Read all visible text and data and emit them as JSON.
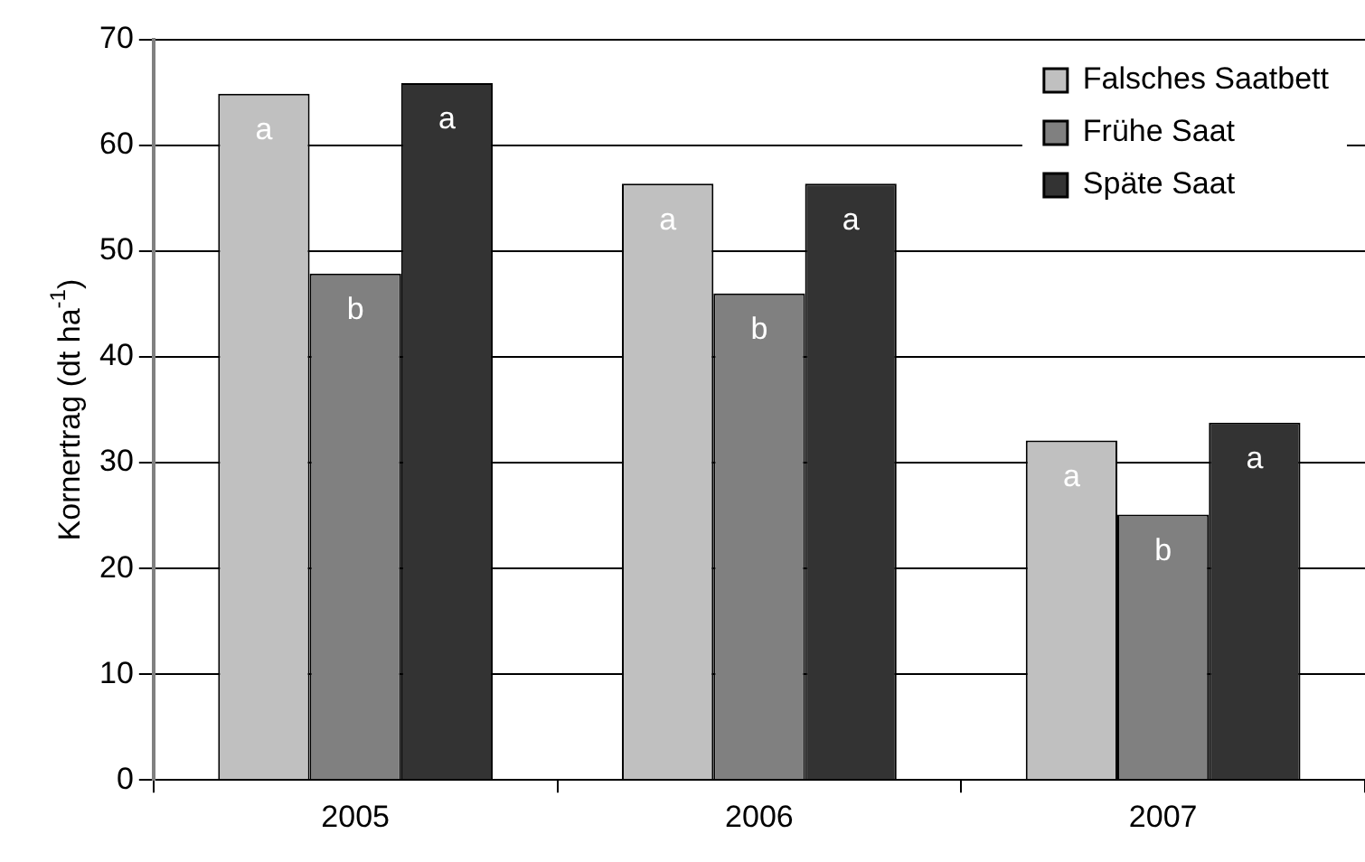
{
  "chart_data": {
    "type": "bar",
    "ylabel": "Kornertrag (dt ha$^{-1}$)",
    "categories": [
      "2005",
      "2006",
      "2007"
    ],
    "series": [
      {
        "name": "Falsches Saatbett",
        "color": "#c0c0c0",
        "values": [
          64.9,
          56.4,
          32.1
        ]
      },
      {
        "name": "Frühe Saat",
        "color": "#808080",
        "values": [
          47.9,
          46.0,
          25.1
        ]
      },
      {
        "name": "Späte Saat",
        "color": "#333333",
        "values": [
          65.9,
          56.4,
          33.8
        ]
      }
    ],
    "ylim": [
      0,
      70
    ],
    "yticks": [
      0,
      10,
      20,
      30,
      40,
      50,
      60,
      70
    ],
    "grid": "y",
    "legend": "top right",
    "annotations": [
      "a",
      "b",
      "a",
      "a",
      "b",
      "a",
      "a",
      "b",
      "a"
    ]
  }
}
